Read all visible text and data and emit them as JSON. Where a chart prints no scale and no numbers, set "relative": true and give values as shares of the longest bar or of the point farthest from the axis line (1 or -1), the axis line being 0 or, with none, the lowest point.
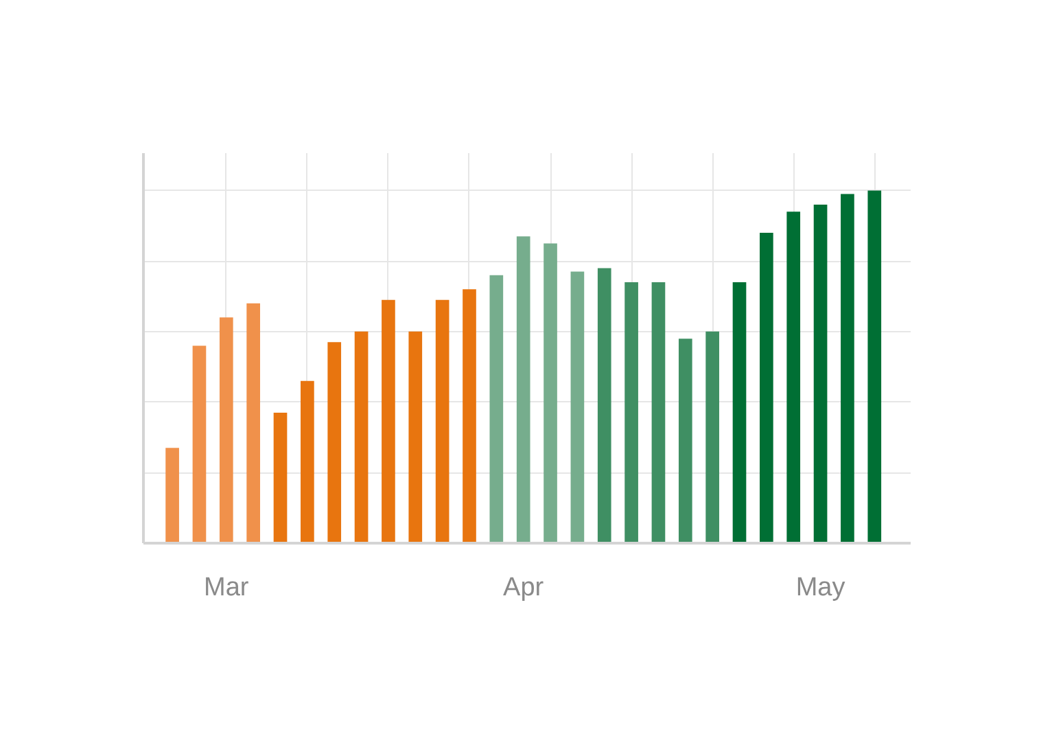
{
  "chart_data": {
    "type": "bar",
    "relative": true,
    "categories": [
      null,
      null,
      "Mar",
      null,
      null,
      null,
      null,
      null,
      null,
      null,
      null,
      null,
      null,
      "Apr",
      null,
      null,
      null,
      null,
      null,
      null,
      null,
      null,
      null,
      null,
      "May",
      null,
      null
    ],
    "values": [
      0.27,
      0.56,
      0.64,
      0.68,
      0.37,
      0.46,
      0.57,
      0.6,
      0.69,
      0.6,
      0.69,
      0.72,
      0.76,
      0.87,
      0.85,
      0.77,
      0.78,
      0.74,
      0.74,
      0.58,
      0.6,
      0.74,
      0.88,
      0.94,
      0.96,
      0.99,
      1
    ],
    "colors": [
      "#f0914b",
      "#f0914b",
      "#f0914b",
      "#f0914b",
      "#e8750f",
      "#e8750f",
      "#e8750f",
      "#e8750f",
      "#e8750f",
      "#e8750f",
      "#e8750f",
      "#e8750f",
      "#76ad8d",
      "#76ad8d",
      "#76ad8d",
      "#76ad8d",
      "#3f8f63",
      "#3f8f63",
      "#3f8f63",
      "#3f8f63",
      "#3f8f63",
      "#006f34",
      "#006f34",
      "#006f34",
      "#006f34",
      "#006f34",
      "#006f34"
    ],
    "grid": true
  }
}
